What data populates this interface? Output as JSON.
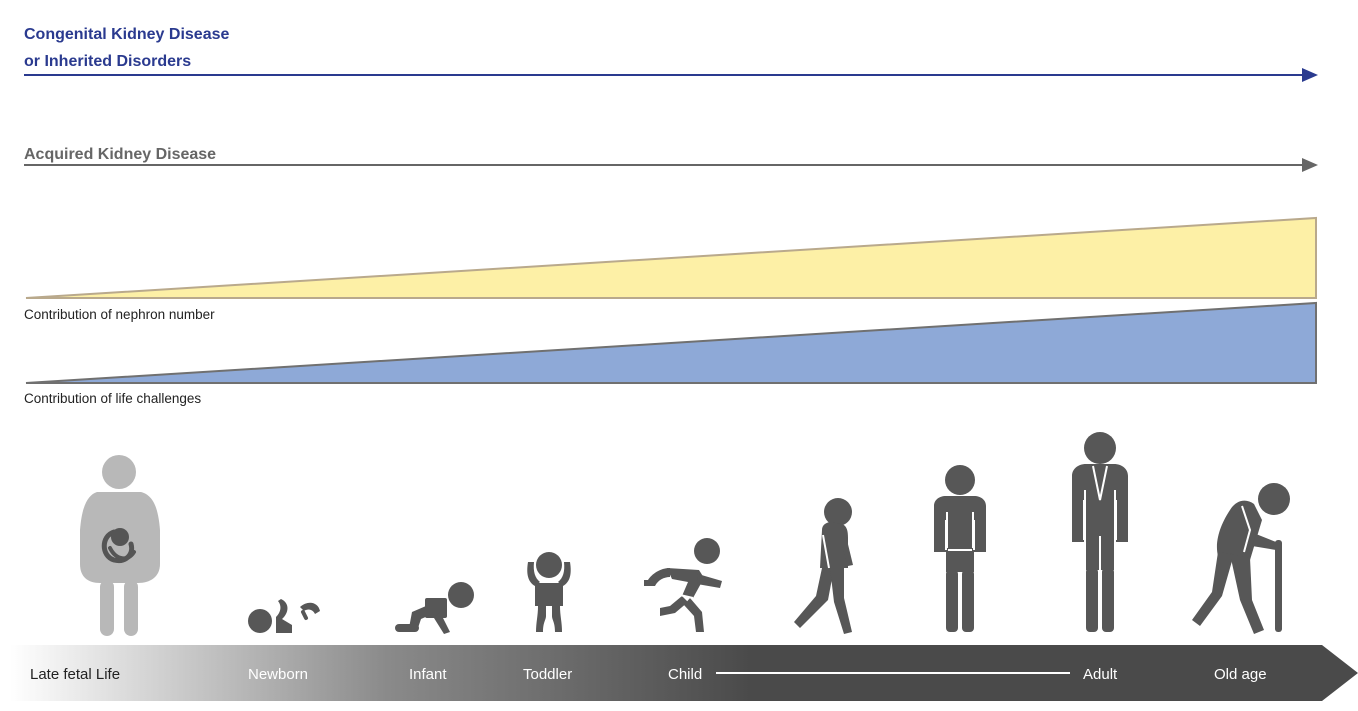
{
  "congenital": {
    "line1": "Congenital Kidney Disease",
    "line2": "or Inherited Disorders",
    "color": "#2a3a8f"
  },
  "acquired": {
    "label": "Acquired Kidney Disease",
    "color": "#666666"
  },
  "nephron_wedge": {
    "label": "Contribution of nephron number",
    "fill": "#fdf0a6",
    "stroke": "#b9a98c"
  },
  "life_wedge": {
    "label": "Contribution of life challenges",
    "fill": "#8ea9d7",
    "stroke": "#707070"
  },
  "figures": [
    {
      "name": "pregnant-woman-with-fetus",
      "color": "#b8b8b8"
    },
    {
      "name": "newborn-lying",
      "color": "#575757"
    },
    {
      "name": "infant-crawling",
      "color": "#575757"
    },
    {
      "name": "toddler-arms-up",
      "color": "#575757"
    },
    {
      "name": "child-running",
      "color": "#575757"
    },
    {
      "name": "teen-walking",
      "color": "#575757"
    },
    {
      "name": "adult-standing",
      "color": "#575757"
    },
    {
      "name": "tall-adult-standing",
      "color": "#575757"
    },
    {
      "name": "old-person-with-cane",
      "color": "#575757"
    }
  ],
  "timeline": {
    "stages": [
      {
        "label": "Late fetal Life",
        "color": "#222222"
      },
      {
        "label": "Newborn",
        "color": "#ffffff"
      },
      {
        "label": "Infant",
        "color": "#ffffff"
      },
      {
        "label": "Toddler",
        "color": "#ffffff"
      },
      {
        "label": "Child",
        "color": "#ffffff"
      },
      {
        "label": "Adult",
        "color": "#ffffff"
      },
      {
        "label": "Old age",
        "color": "#ffffff"
      }
    ],
    "gradient_start": "#ffffff",
    "gradient_end": "#4a4a4a"
  }
}
